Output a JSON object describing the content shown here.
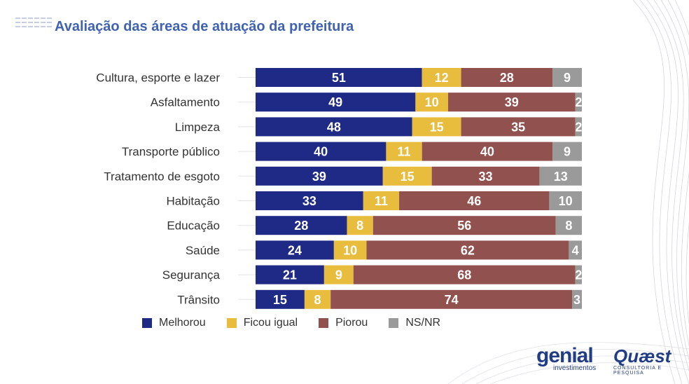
{
  "title": "Avaliação das áreas de atuação da prefeitura",
  "colors": {
    "melhorou": "#1f2a87",
    "ficou_igual": "#e8bd3e",
    "piorou": "#91524f",
    "nsnr": "#9a9a9a"
  },
  "chart_data": {
    "type": "bar",
    "orientation": "horizontal",
    "stacked": true,
    "title": "Avaliação das áreas de atuação da prefeitura",
    "categories": [
      "Cultura, esporte e lazer",
      "Asfaltamento",
      "Limpeza",
      "Transporte público",
      "Tratamento de esgoto",
      "Habitação",
      "Educação",
      "Saúde",
      "Segurança",
      "Trânsito"
    ],
    "series": [
      {
        "name": "Melhorou",
        "color": "#1f2a87",
        "values": [
          51,
          49,
          48,
          40,
          39,
          33,
          28,
          24,
          21,
          15
        ]
      },
      {
        "name": "Ficou igual",
        "color": "#e8bd3e",
        "values": [
          12,
          10,
          15,
          11,
          15,
          11,
          8,
          10,
          9,
          8
        ]
      },
      {
        "name": "Piorou",
        "color": "#91524f",
        "values": [
          28,
          39,
          35,
          40,
          33,
          46,
          56,
          62,
          68,
          74
        ]
      },
      {
        "name": "NS/NR",
        "color": "#9a9a9a",
        "values": [
          9,
          2,
          2,
          9,
          13,
          10,
          8,
          4,
          2,
          3
        ]
      }
    ],
    "xlim": [
      0,
      100
    ],
    "legend_position": "bottom",
    "grid": false
  },
  "logos": {
    "genial": "genial",
    "genial_sub": "investimentos",
    "quaest": "Quæst",
    "quaest_sub": "CONSULTORIA E PESQUISA"
  }
}
